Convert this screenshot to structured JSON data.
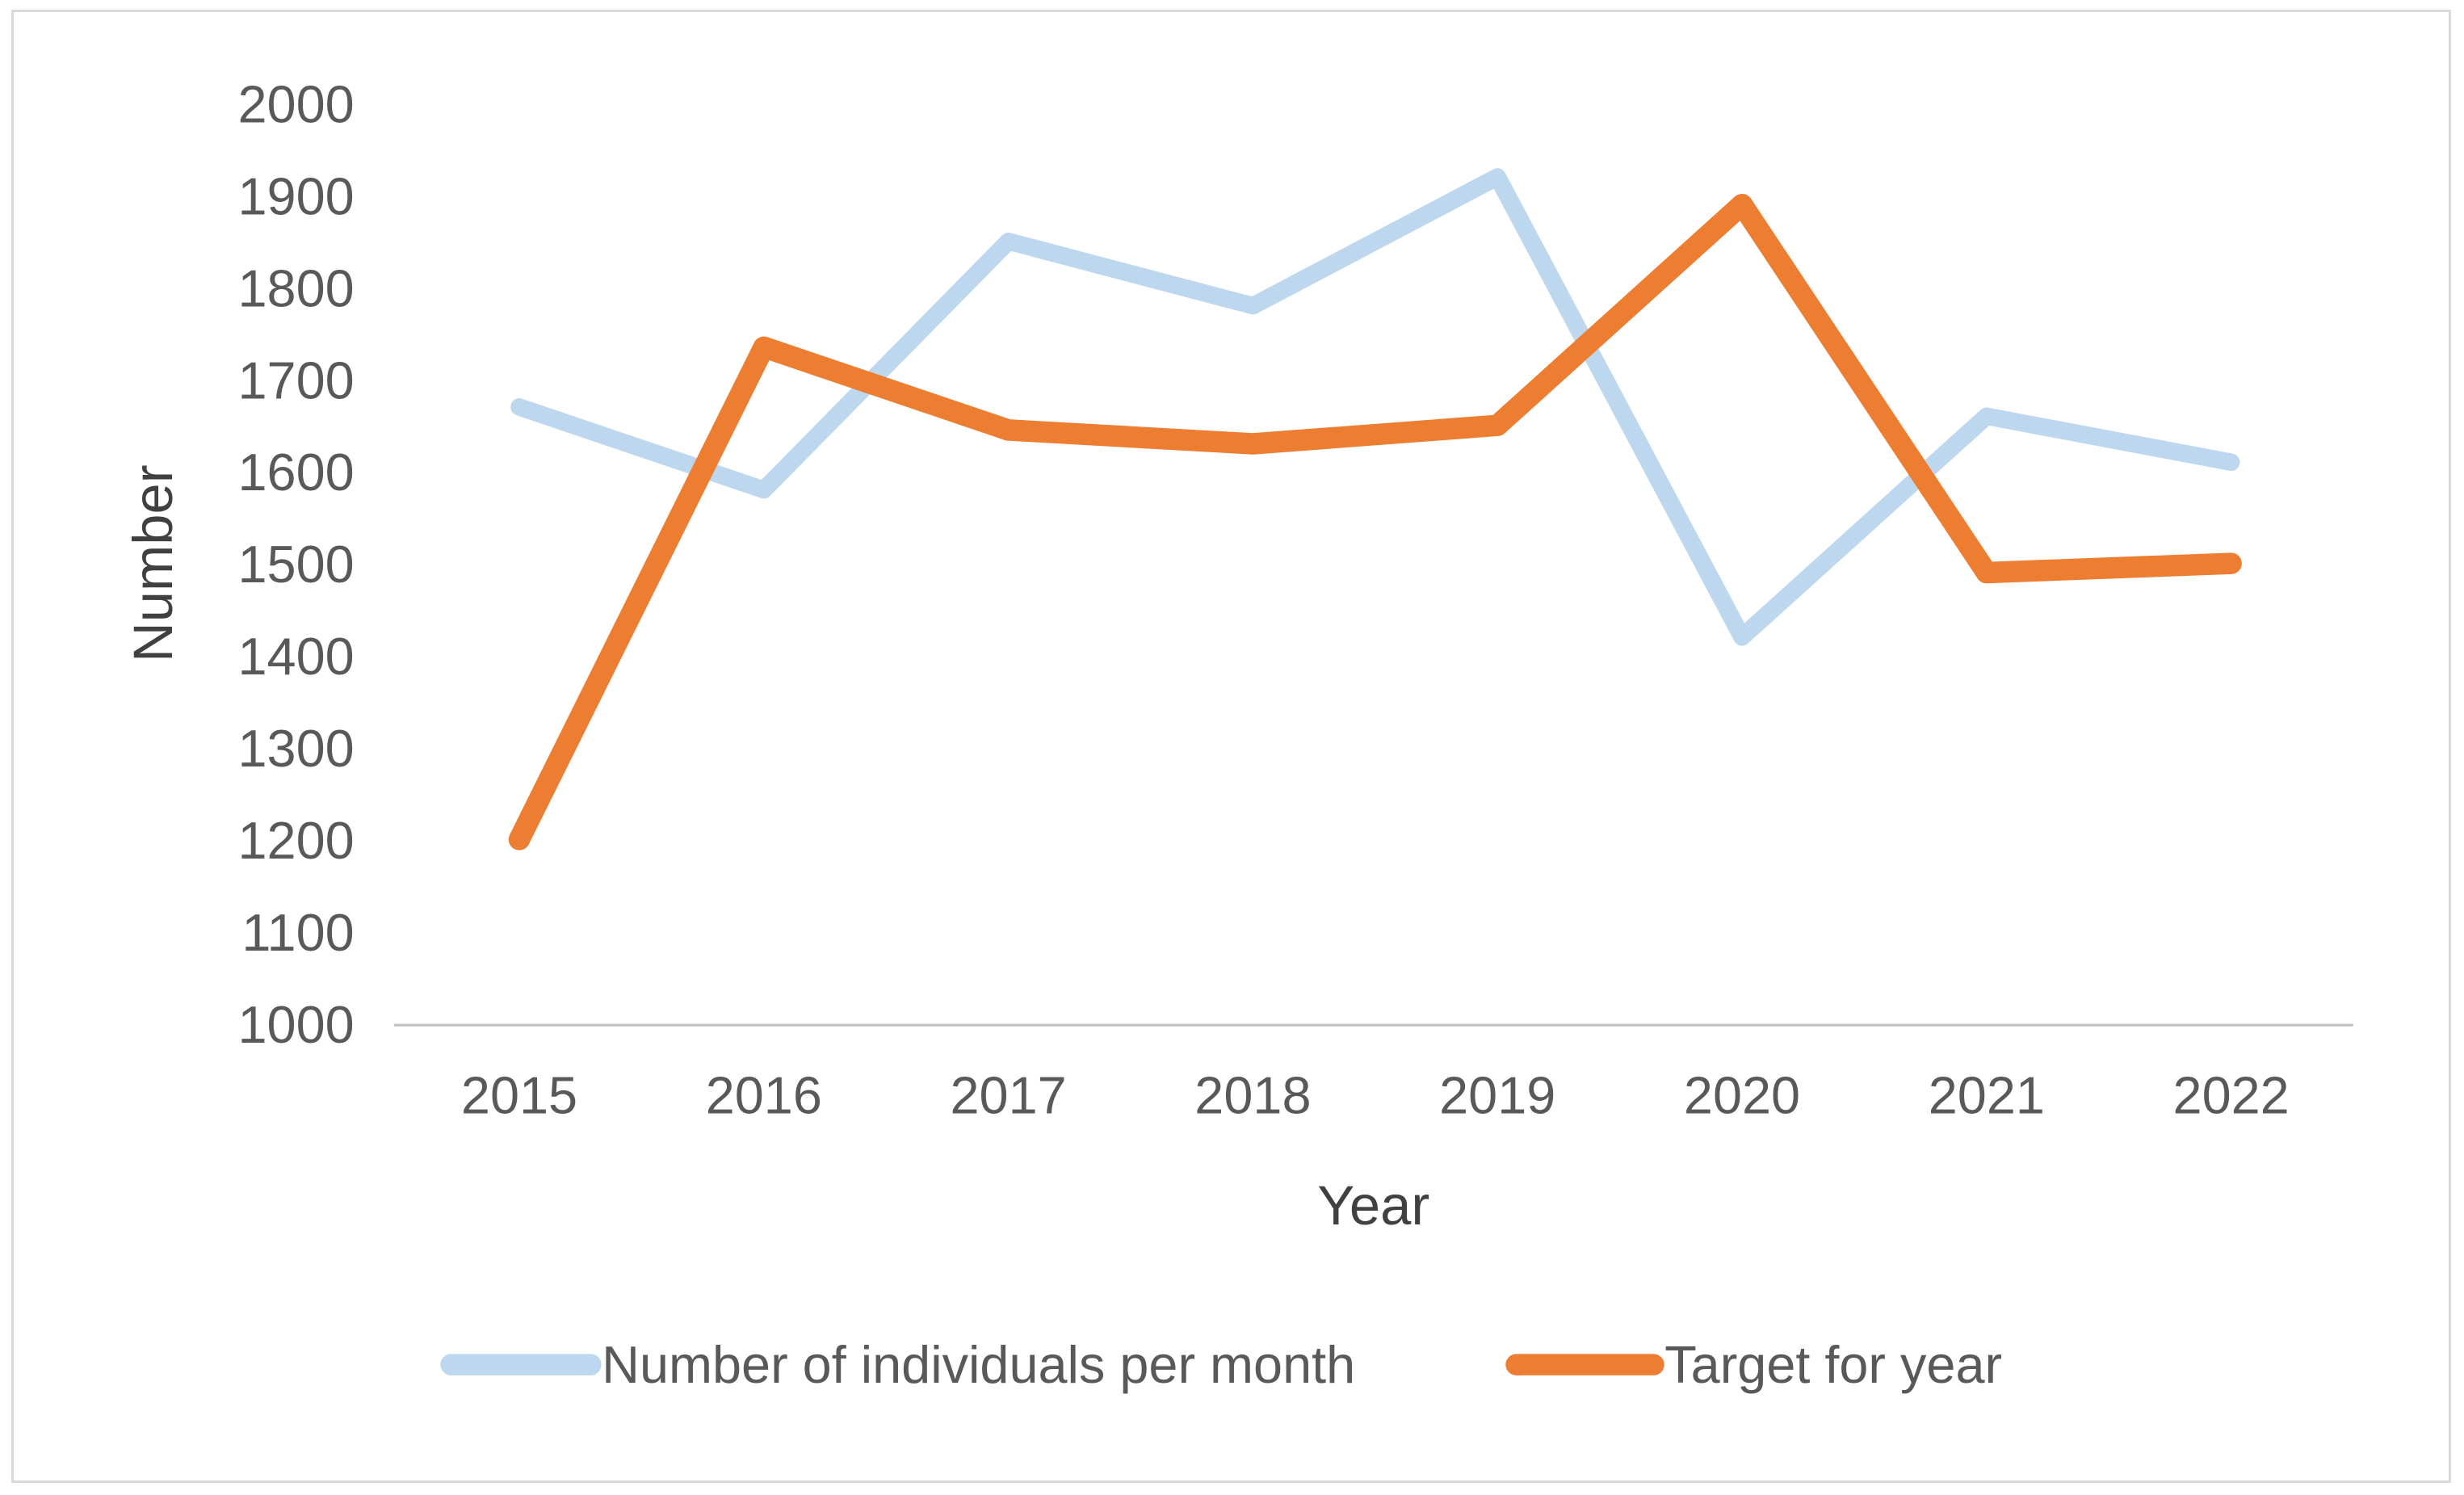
{
  "chart_data": {
    "type": "line",
    "title": "",
    "categories": [
      "2015",
      "2016",
      "2017",
      "2018",
      "2019",
      "2020",
      "2021",
      "2022"
    ],
    "series": [
      {
        "name": "Number of individuals per month",
        "color": "#BDD7EE",
        "values": [
          1670,
          1580,
          1850,
          1780,
          1920,
          1420,
          1660,
          1610
        ]
      },
      {
        "name": "Target for year",
        "color": "#ED7D31",
        "values": [
          1200,
          1735,
          1645,
          1630,
          1650,
          1890,
          1490,
          1500
        ]
      }
    ],
    "xlabel": "Year",
    "ylabel": "Number",
    "ylim": [
      1000,
      2000
    ],
    "ytick_step": 100,
    "y_tick_labels": [
      "2000",
      "1900",
      "1800",
      "1700",
      "1600",
      "1500",
      "1400",
      "1300",
      "1200",
      "1100",
      "1000"
    ],
    "grid": false,
    "legend_position": "bottom",
    "axis_line_color": "#BFBFBF"
  }
}
